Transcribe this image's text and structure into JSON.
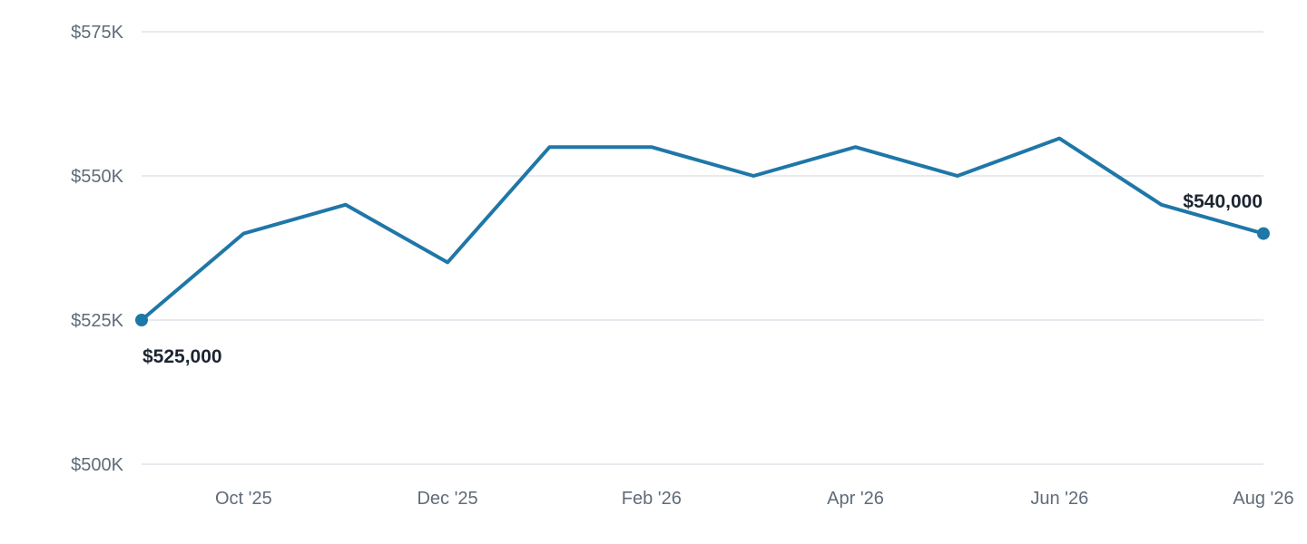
{
  "chart_data": {
    "type": "line",
    "title": "",
    "xlabel": "",
    "ylabel": "",
    "x": [
      "Sep '25",
      "Oct '25",
      "Nov '25",
      "Dec '25",
      "Jan '26",
      "Feb '26",
      "Mar '26",
      "Apr '26",
      "May '26",
      "Jun '26",
      "Jul '26",
      "Aug '26"
    ],
    "x_tick_labels": [
      "Oct '25",
      "Dec '25",
      "Feb '26",
      "Apr '26",
      "Jun '26",
      "Aug '26"
    ],
    "series": [
      {
        "values": [
          525000,
          540000,
          545000,
          535000,
          555000,
          555000,
          550000,
          555000,
          550000,
          556500,
          545000,
          540000
        ],
        "color": "#1f77a8"
      }
    ],
    "ylim": [
      500000,
      575000
    ],
    "y_ticks": [
      500000,
      525000,
      550000,
      575000
    ],
    "y_tick_labels": [
      "$500K",
      "$525K",
      "$550K",
      "$575K"
    ],
    "grid": "horizontal",
    "annotations": {
      "start_label": "$525,000",
      "end_label": "$540,000"
    }
  }
}
